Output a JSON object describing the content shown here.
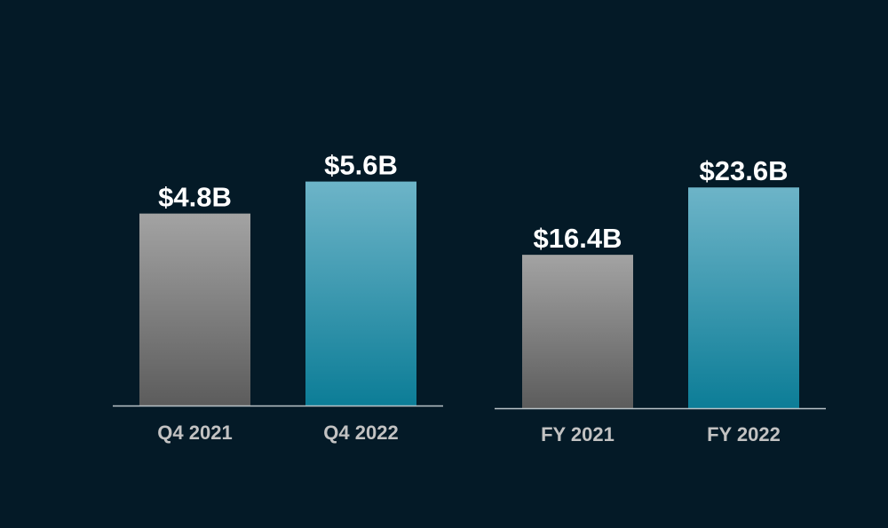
{
  "chart_data": [
    {
      "type": "bar",
      "categories": [
        "Q4 2021",
        "Q4 2022"
      ],
      "values": [
        4.8,
        5.6
      ],
      "value_labels": [
        "$4.8B",
        "$5.6B"
      ],
      "bar_styles": [
        "gray",
        "teal"
      ],
      "ylim": [
        0,
        6.9
      ]
    },
    {
      "type": "bar",
      "categories": [
        "FY 2021",
        "FY 2022"
      ],
      "values": [
        16.4,
        23.6
      ],
      "value_labels": [
        "$16.4B",
        "$23.6B"
      ],
      "bar_styles": [
        "gray",
        "teal"
      ],
      "ylim": [
        0,
        29.6
      ]
    }
  ],
  "colors": {
    "background": "#041a27",
    "gray_top": "#a3a3a3",
    "gray_bottom": "#5c5c5c",
    "teal_top": "#6db4c8",
    "teal_bottom": "#0c7d97",
    "label_text": "#ffffff",
    "category_text": "#c2c2c2",
    "baseline": "#b9c3c8"
  }
}
